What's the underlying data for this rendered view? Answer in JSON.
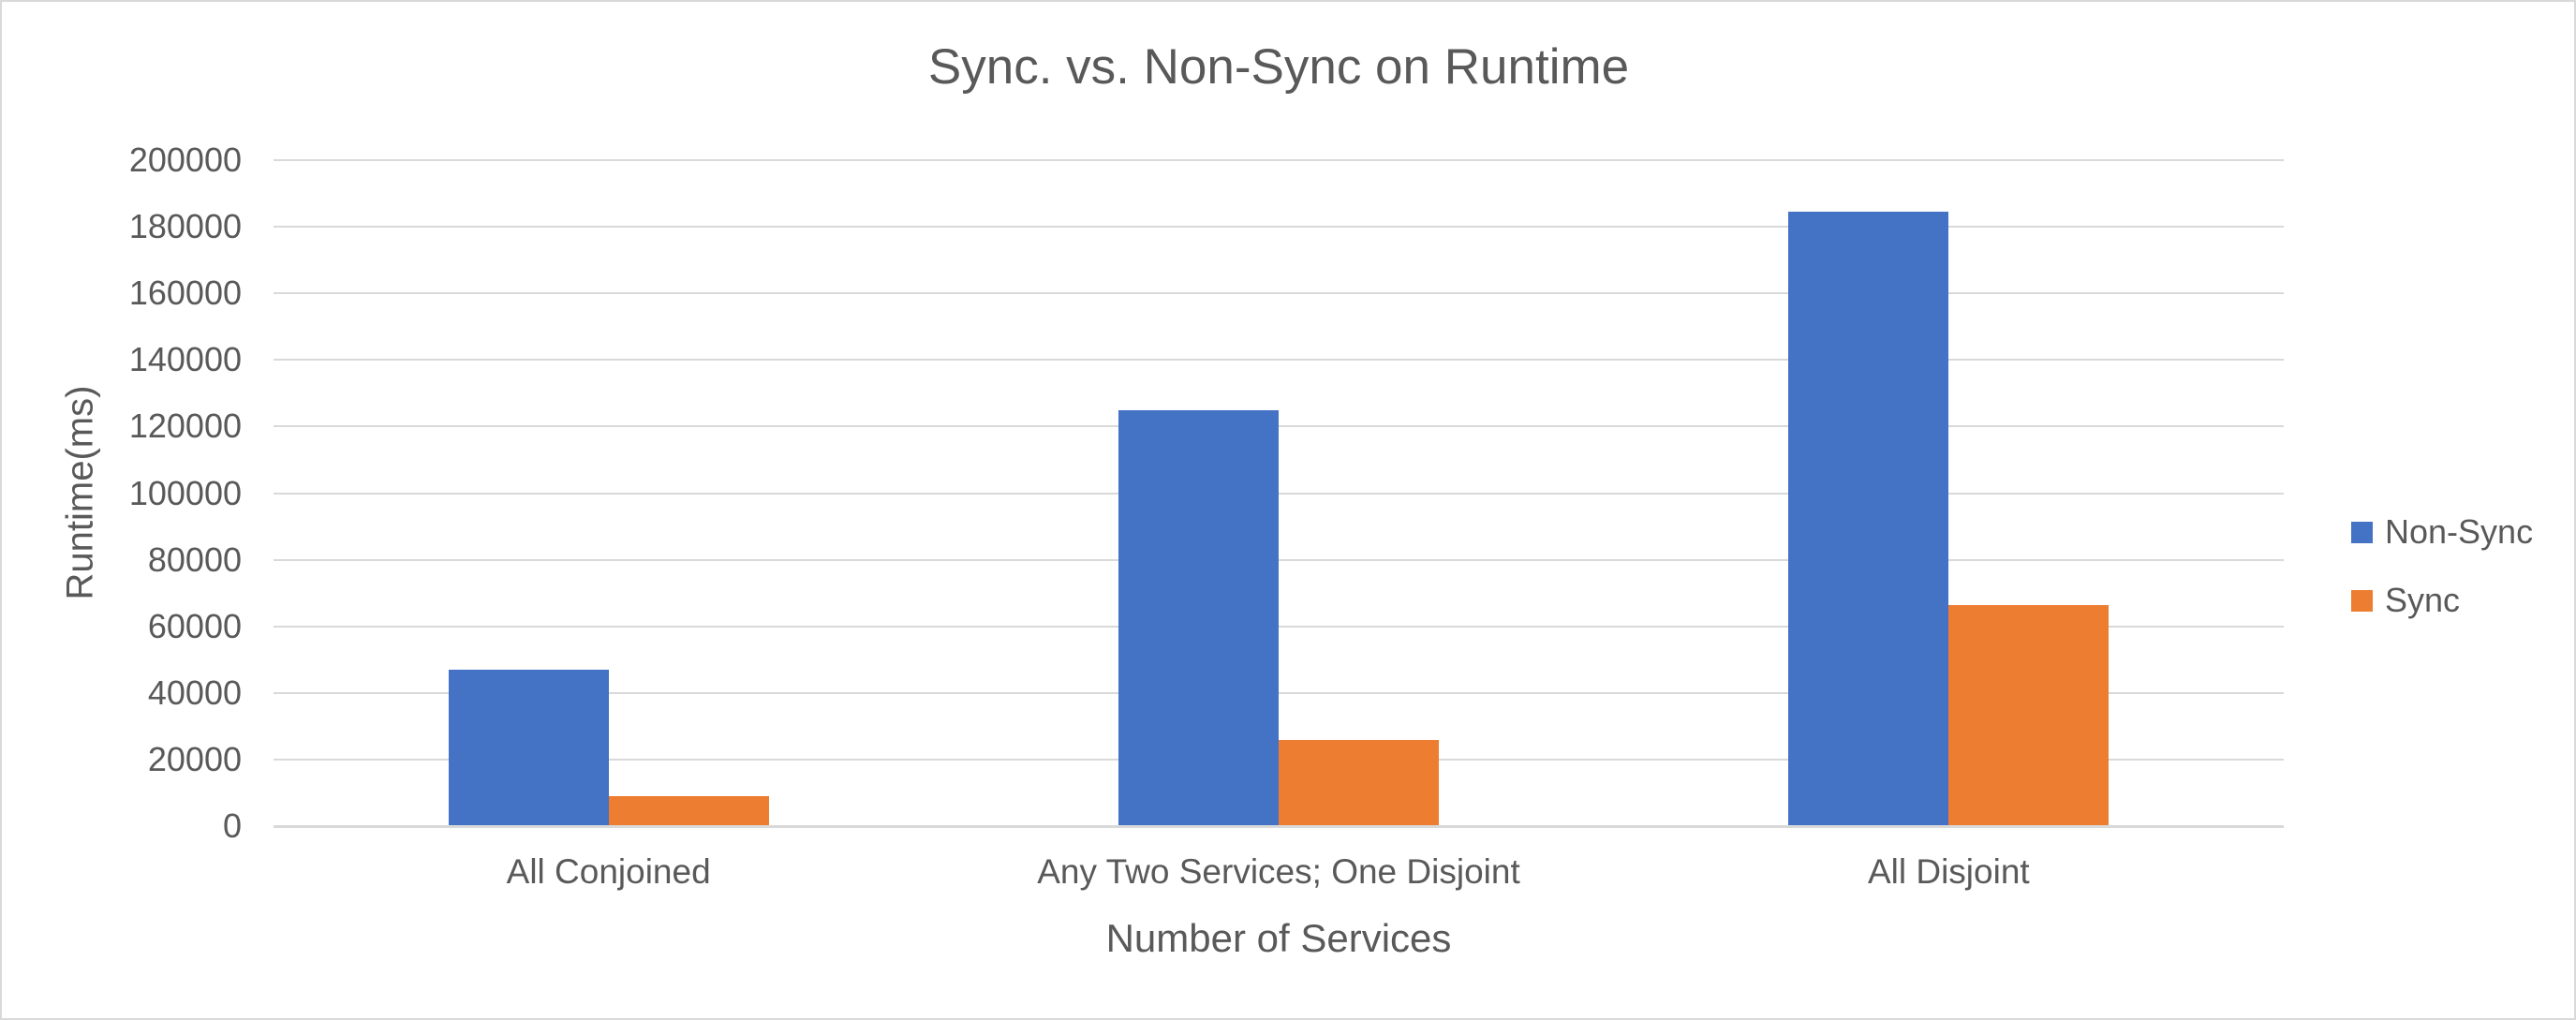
{
  "chart_data": {
    "type": "bar",
    "title": "Sync. vs. Non-Sync on Runtime",
    "xlabel": "Number of Services",
    "ylabel": "Runtime(ms)",
    "categories": [
      "All Conjoined",
      "Any Two Services; One Disjoint",
      "All Disjoint"
    ],
    "series": [
      {
        "name": "Non-Sync",
        "color": "#4472C4",
        "values": [
          47000,
          125000,
          184500
        ]
      },
      {
        "name": "Sync",
        "color": "#ED7D31",
        "values": [
          9000,
          26000,
          66500
        ]
      }
    ],
    "ylim": [
      0,
      200000
    ],
    "ytick_step": 20000,
    "yticks": [
      0,
      20000,
      40000,
      60000,
      80000,
      100000,
      120000,
      140000,
      160000,
      180000,
      200000
    ],
    "grid": "horizontal",
    "legend_position": "right"
  },
  "colors": {
    "text": "#595959",
    "gridline": "#D9D9D9",
    "axis_line": "#D9D9D9",
    "chart_border": "#D9D9D9",
    "background": "#FFFFFF",
    "non_sync_bar": "#4472C4",
    "sync_bar": "#ED7D31"
  }
}
